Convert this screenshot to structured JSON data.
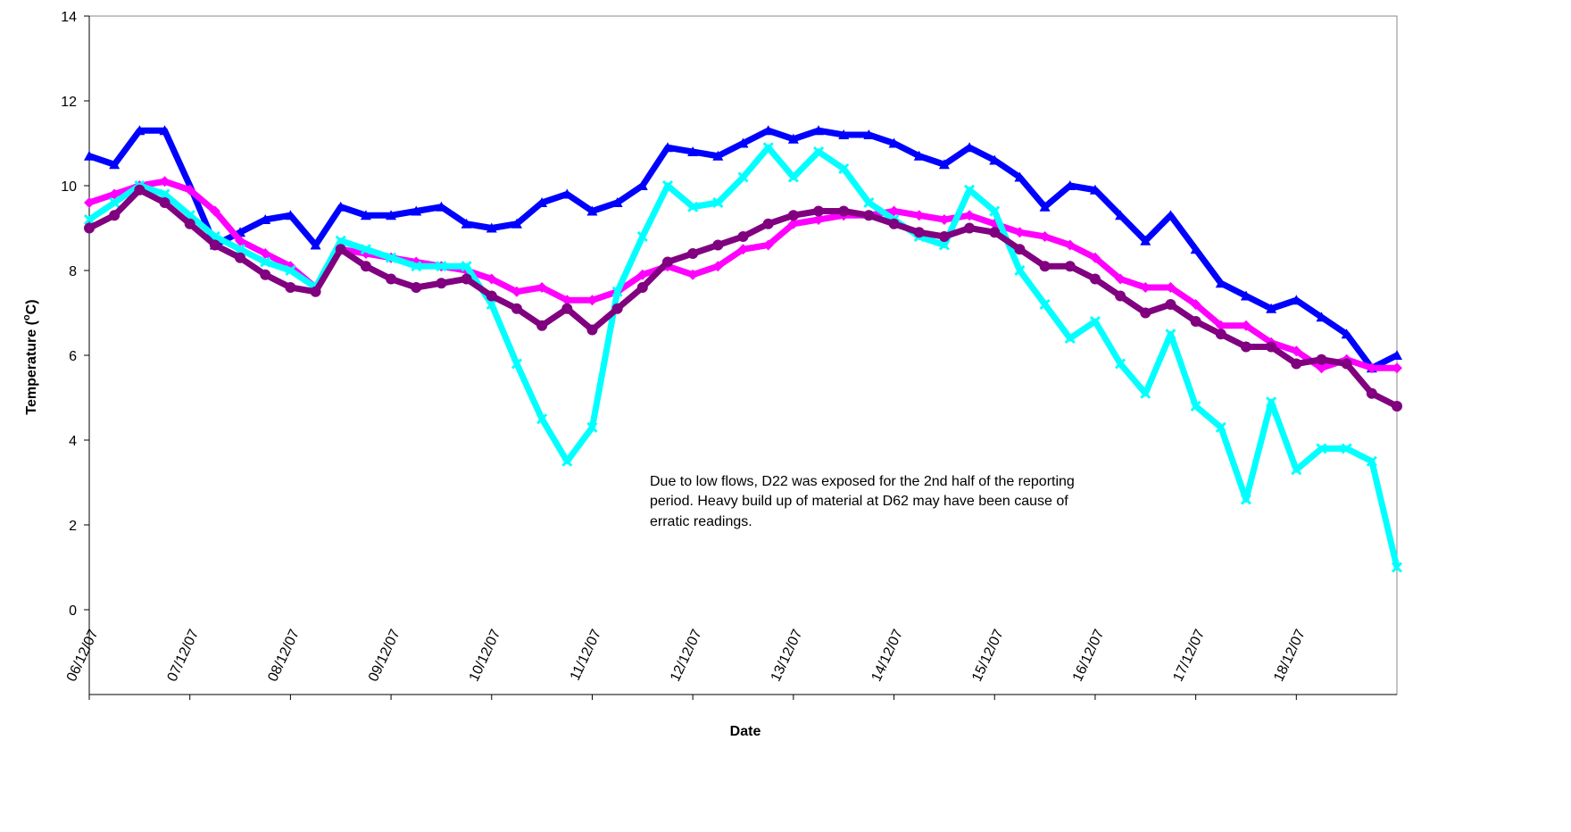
{
  "chart_data": {
    "type": "line",
    "x_label": "Date",
    "y_label": [
      "Temperature (",
      "o",
      "C)"
    ],
    "annotation": [
      "Due to low flows, D22 was exposed for the 2nd half of the reporting",
      "period.  Heavy build up of material at D62 may have been cause of",
      "erratic readings."
    ],
    "x": [
      0,
      0.25,
      0.5,
      0.75,
      1,
      1.25,
      1.5,
      1.75,
      2,
      2.25,
      2.5,
      2.75,
      3,
      3.25,
      3.5,
      3.75,
      4,
      4.25,
      4.5,
      4.75,
      5,
      5.25,
      5.5,
      5.75,
      6,
      6.25,
      6.5,
      6.75,
      7,
      7.25,
      7.5,
      7.75,
      8,
      8.25,
      8.5,
      8.75,
      9,
      9.25,
      9.5,
      9.75,
      10,
      10.25,
      10.5,
      10.75,
      11,
      11.25,
      11.5,
      11.75,
      12,
      12.25,
      12.5,
      12.75,
      13
    ],
    "xlim": [
      0,
      13
    ],
    "xticks": [
      {
        "value": 0,
        "label": "06/12/07"
      },
      {
        "value": 1,
        "label": "07/12/07"
      },
      {
        "value": 2,
        "label": "08/12/07"
      },
      {
        "value": 3,
        "label": "09/12/07"
      },
      {
        "value": 4,
        "label": "10/12/07"
      },
      {
        "value": 5,
        "label": "11/12/07"
      },
      {
        "value": 6,
        "label": "12/12/07"
      },
      {
        "value": 7,
        "label": "13/12/07"
      },
      {
        "value": 8,
        "label": "14/12/07"
      },
      {
        "value": 9,
        "label": "15/12/07"
      },
      {
        "value": 10,
        "label": "16/12/07"
      },
      {
        "value": 11,
        "label": "17/12/07"
      },
      {
        "value": 12,
        "label": "18/12/07"
      }
    ],
    "ylim": [
      -2,
      14
    ],
    "yticks": [
      0,
      2,
      4,
      6,
      8,
      10,
      12,
      14
    ],
    "grid": false,
    "series": [
      {
        "color": "#0000ff",
        "marker": "triangle",
        "values": [
          10.7,
          10.5,
          11.3,
          11.3,
          10.0,
          8.6,
          8.9,
          9.2,
          9.3,
          8.6,
          9.5,
          9.3,
          9.3,
          9.4,
          9.5,
          9.1,
          9.0,
          9.1,
          9.6,
          9.8,
          9.4,
          9.6,
          10.0,
          10.9,
          10.8,
          10.7,
          11.0,
          11.3,
          11.1,
          11.3,
          11.2,
          11.2,
          11.0,
          10.7,
          10.5,
          10.9,
          10.6,
          10.2,
          9.5,
          10.0,
          9.9,
          9.3,
          8.7,
          9.3,
          8.5,
          7.7,
          7.4,
          7.1,
          7.3,
          6.9,
          6.5,
          5.7,
          6.0
        ]
      },
      {
        "color": "#ff00ff",
        "marker": "diamond",
        "values": [
          9.6,
          9.8,
          10.0,
          10.1,
          9.9,
          9.4,
          8.7,
          8.4,
          8.1,
          7.6,
          8.5,
          8.4,
          8.3,
          8.2,
          8.1,
          8.0,
          7.8,
          7.5,
          7.6,
          7.3,
          7.3,
          7.5,
          7.9,
          8.1,
          7.9,
          8.1,
          8.5,
          8.6,
          9.1,
          9.2,
          9.3,
          9.3,
          9.4,
          9.3,
          9.2,
          9.3,
          9.1,
          8.9,
          8.8,
          8.6,
          8.3,
          7.8,
          7.6,
          7.6,
          7.2,
          6.7,
          6.7,
          6.3,
          6.1,
          5.7,
          5.9,
          5.7,
          5.7
        ]
      },
      {
        "color": "#00ffff",
        "marker": "x",
        "values": [
          9.2,
          9.6,
          10.0,
          9.8,
          9.3,
          8.8,
          8.5,
          8.2,
          8.0,
          7.6,
          8.7,
          8.5,
          8.3,
          8.1,
          8.1,
          8.1,
          7.2,
          5.8,
          4.5,
          3.5,
          4.3,
          7.5,
          8.8,
          10.0,
          9.5,
          9.6,
          10.2,
          10.9,
          10.2,
          10.8,
          10.4,
          9.6,
          9.2,
          8.8,
          8.6,
          9.9,
          9.4,
          8.0,
          7.2,
          6.4,
          6.8,
          5.8,
          5.1,
          6.5,
          4.8,
          4.3,
          2.6,
          4.9,
          3.3,
          3.8,
          3.8,
          3.5,
          1.0
        ]
      },
      {
        "color": "#800080",
        "marker": "circle",
        "values": [
          9.0,
          9.3,
          9.9,
          9.6,
          9.1,
          8.6,
          8.3,
          7.9,
          7.6,
          7.5,
          8.5,
          8.1,
          7.8,
          7.6,
          7.7,
          7.8,
          7.4,
          7.1,
          6.7,
          7.1,
          6.6,
          7.1,
          7.6,
          8.2,
          8.4,
          8.6,
          8.8,
          9.1,
          9.3,
          9.4,
          9.4,
          9.3,
          9.1,
          8.9,
          8.8,
          9.0,
          8.9,
          8.5,
          8.1,
          8.1,
          7.8,
          7.4,
          7.0,
          7.2,
          6.8,
          6.5,
          6.2,
          6.2,
          5.8,
          5.9,
          5.8,
          5.1,
          4.8
        ]
      }
    ]
  }
}
